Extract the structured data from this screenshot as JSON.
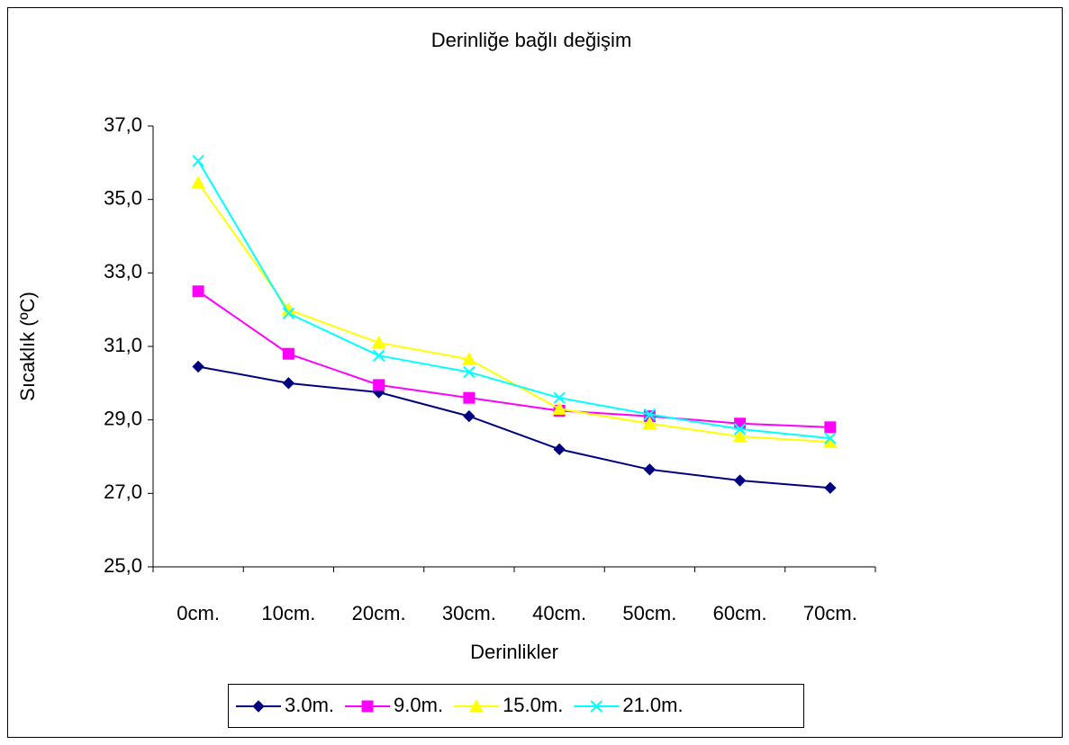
{
  "chart_data": {
    "type": "line",
    "title": "Derinliğe bağlı değişim",
    "x_label": "Derinlikler",
    "y_label": "Sıcaklık (ºC)",
    "categories": [
      "0cm.",
      "10cm.",
      "20cm.",
      "30cm.",
      "40cm.",
      "50cm.",
      "60cm.",
      "70cm."
    ],
    "ylim": [
      25,
      37
    ],
    "yticks": [
      {
        "value": 25,
        "label": "25,0"
      },
      {
        "value": 27,
        "label": "27,0"
      },
      {
        "value": 29,
        "label": "29,0"
      },
      {
        "value": 31,
        "label": "31,0"
      },
      {
        "value": 33,
        "label": "33,0"
      },
      {
        "value": 35,
        "label": "35,0"
      },
      {
        "value": 37,
        "label": "37,0"
      }
    ],
    "grid": false,
    "legend": "bottom",
    "series": [
      {
        "name": "3.0m.",
        "color": "#000080",
        "marker": "diamond",
        "values": [
          30.45,
          30.0,
          29.75,
          29.1,
          28.2,
          27.65,
          27.35,
          27.15
        ]
      },
      {
        "name": "9.0m.",
        "color": "#ff00ff",
        "marker": "square",
        "values": [
          32.5,
          30.8,
          29.95,
          29.6,
          29.25,
          29.1,
          28.9,
          28.8
        ]
      },
      {
        "name": "15.0m.",
        "color": "#ffff00",
        "marker": "triangle",
        "values": [
          35.45,
          32.0,
          31.1,
          30.65,
          29.3,
          28.9,
          28.55,
          28.4
        ]
      },
      {
        "name": "21.0m.",
        "color": "#00ffff",
        "marker": "x",
        "values": [
          36.05,
          31.9,
          30.75,
          30.3,
          29.6,
          29.15,
          28.75,
          28.5
        ]
      }
    ]
  }
}
